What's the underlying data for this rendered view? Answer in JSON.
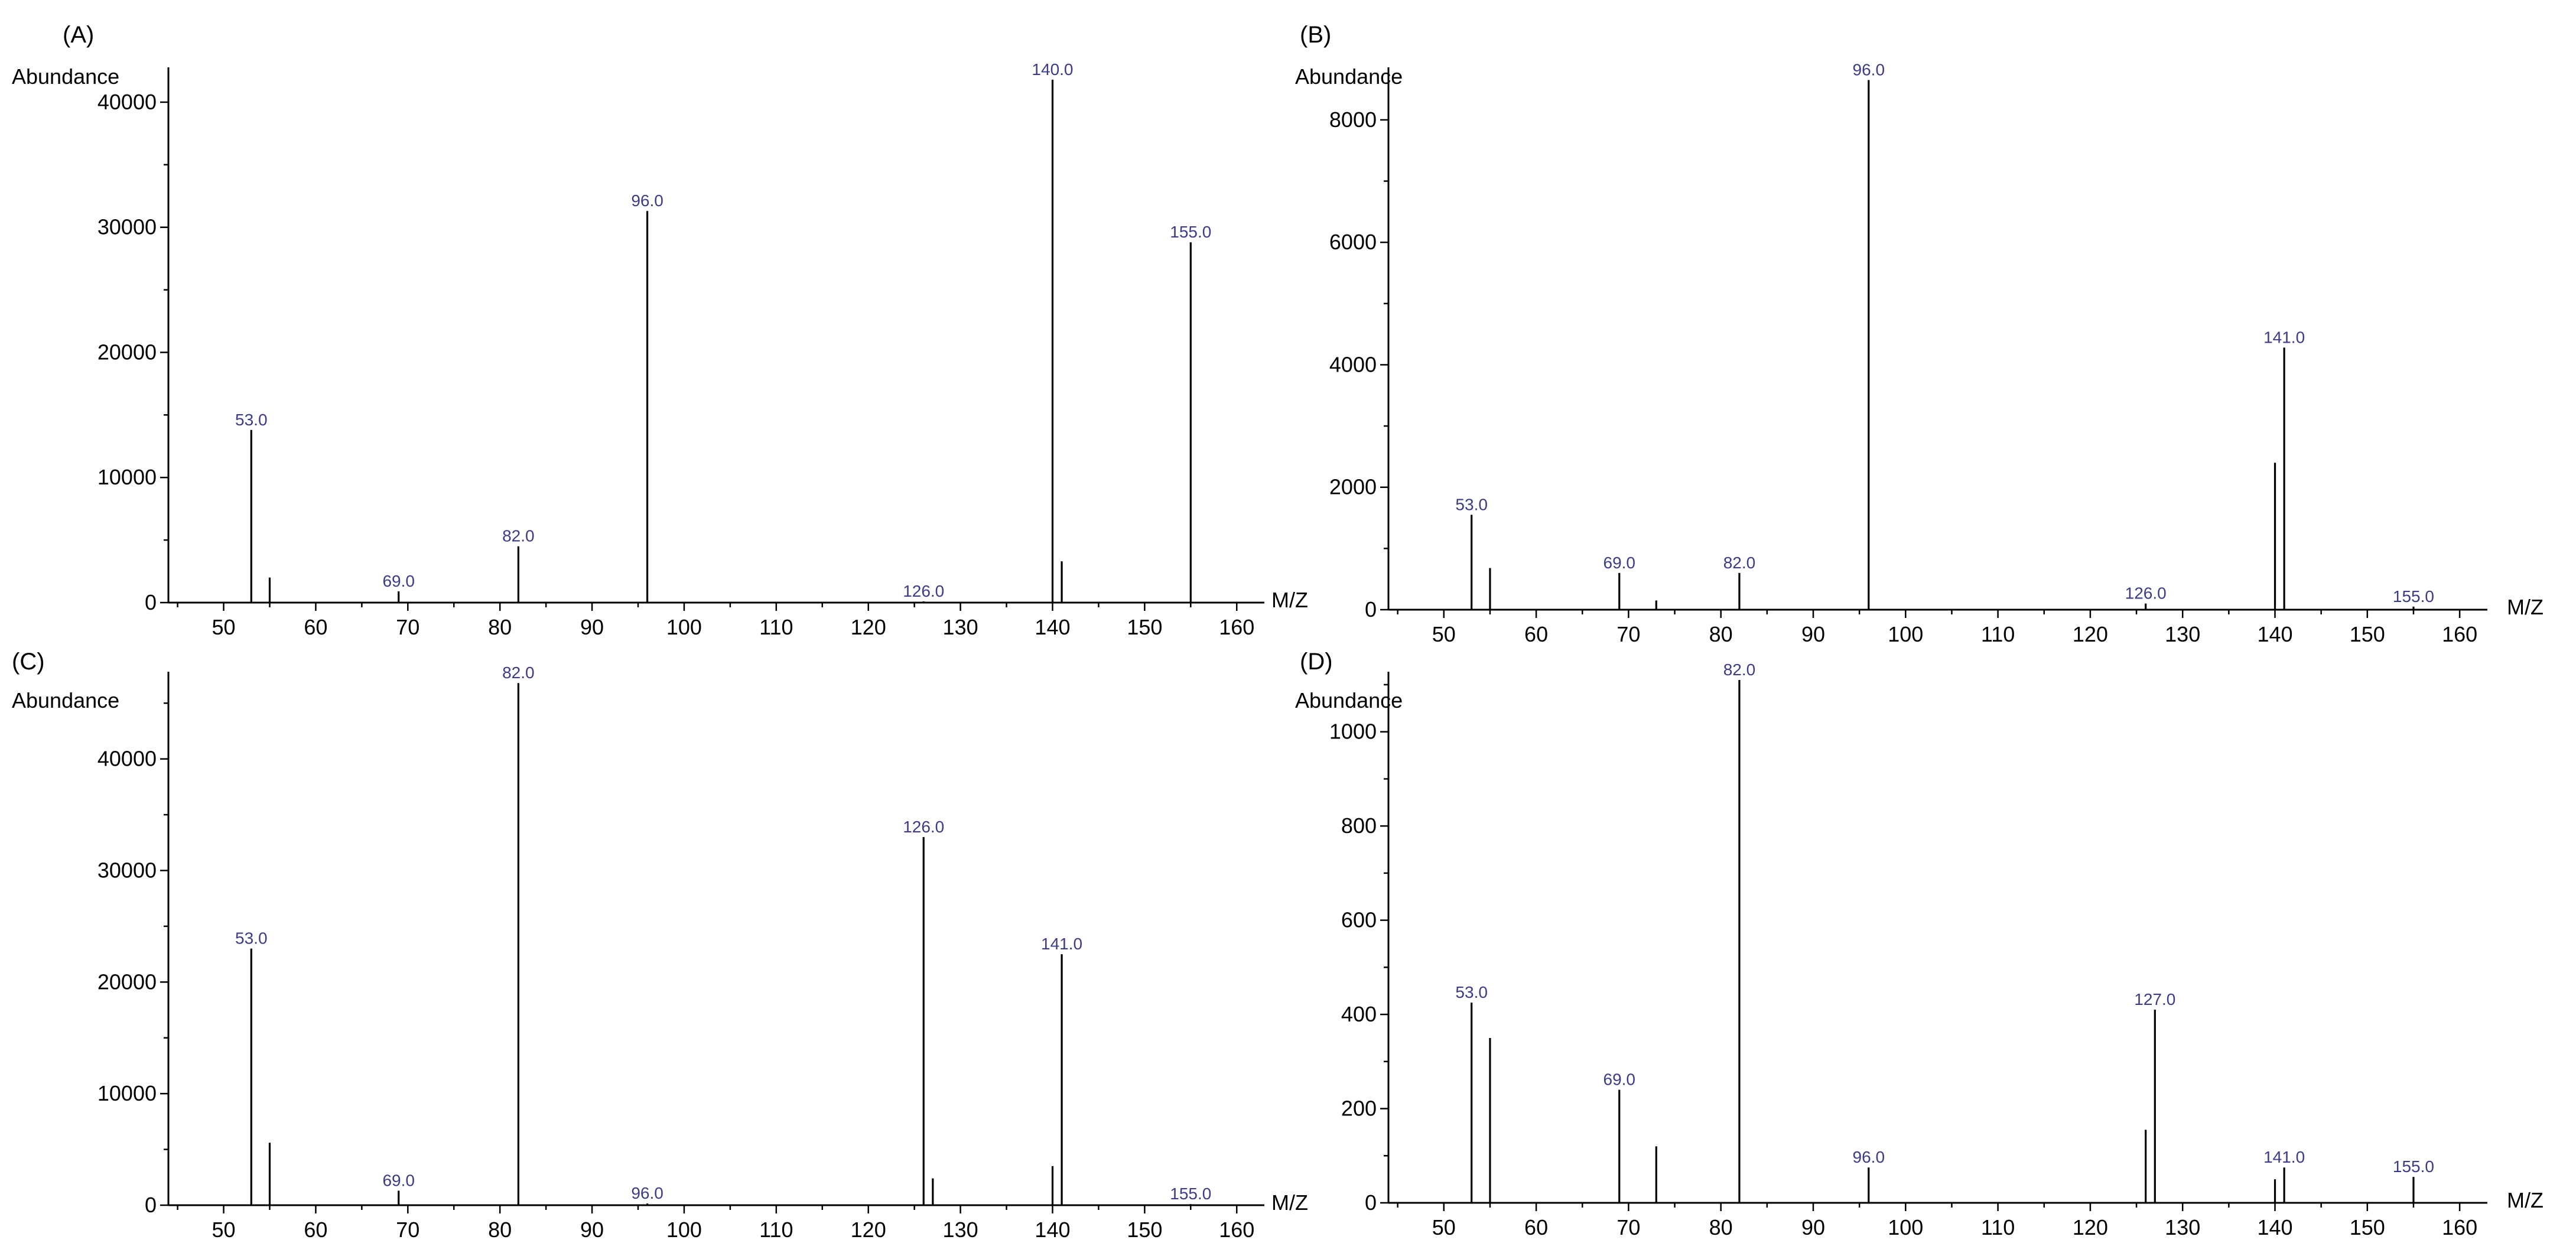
{
  "chart_data": [
    {
      "panel": "(A)",
      "type": "bar",
      "ylabel": "Abundance",
      "xlabel": "M/Z",
      "xlim": [
        44,
        163
      ],
      "ylim": [
        0,
        42500
      ],
      "xticks": [
        50,
        60,
        70,
        80,
        90,
        100,
        110,
        120,
        130,
        140,
        150,
        160
      ],
      "yticks": [
        0,
        10000,
        20000,
        30000,
        40000
      ],
      "peaks": [
        {
          "x": 53,
          "y": 13800,
          "label": "53.0"
        },
        {
          "x": 55,
          "y": 2000
        },
        {
          "x": 69,
          "y": 900,
          "label": "69.0"
        },
        {
          "x": 82,
          "y": 4500,
          "label": "82.0"
        },
        {
          "x": 96,
          "y": 31300,
          "label": "96.0"
        },
        {
          "x": 126,
          "y": 100,
          "label": "126.0"
        },
        {
          "x": 140,
          "y": 41800,
          "label": "140.0"
        },
        {
          "x": 141,
          "y": 3300
        },
        {
          "x": 155,
          "y": 28800,
          "label": "155.0"
        }
      ]
    },
    {
      "panel": "(B)",
      "type": "bar",
      "ylabel": "Abundance",
      "xlabel": "M/Z",
      "xlim": [
        44,
        163
      ],
      "ylim": [
        0,
        8800
      ],
      "xticks": [
        50,
        60,
        70,
        80,
        90,
        100,
        110,
        120,
        130,
        140,
        150,
        160
      ],
      "yticks": [
        0,
        2000,
        4000,
        6000,
        8000
      ],
      "peaks": [
        {
          "x": 53,
          "y": 1550,
          "label": "53.0"
        },
        {
          "x": 55,
          "y": 680
        },
        {
          "x": 69,
          "y": 600,
          "label": "69.0"
        },
        {
          "x": 73,
          "y": 150
        },
        {
          "x": 82,
          "y": 600,
          "label": "82.0"
        },
        {
          "x": 96,
          "y": 8650,
          "label": "96.0"
        },
        {
          "x": 126,
          "y": 100,
          "label": "126.0"
        },
        {
          "x": 140,
          "y": 2400
        },
        {
          "x": 141,
          "y": 4280,
          "label": "141.0"
        },
        {
          "x": 155,
          "y": 50,
          "label": "155.0"
        }
      ]
    },
    {
      "panel": "(C)",
      "type": "bar",
      "ylabel": "Abundance",
      "xlabel": "M/Z",
      "xlim": [
        44,
        163
      ],
      "ylim": [
        0,
        47500
      ],
      "xticks": [
        50,
        60,
        70,
        80,
        90,
        100,
        110,
        120,
        130,
        140,
        150,
        160
      ],
      "yticks": [
        0,
        10000,
        20000,
        30000,
        40000
      ],
      "peaks": [
        {
          "x": 53,
          "y": 23000,
          "label": "53.0"
        },
        {
          "x": 55,
          "y": 5600
        },
        {
          "x": 69,
          "y": 1300,
          "label": "69.0"
        },
        {
          "x": 82,
          "y": 46800,
          "label": "82.0"
        },
        {
          "x": 96,
          "y": 150,
          "label": "96.0"
        },
        {
          "x": 126,
          "y": 33000,
          "label": "126.0"
        },
        {
          "x": 127,
          "y": 2400
        },
        {
          "x": 140,
          "y": 3500
        },
        {
          "x": 141,
          "y": 22500,
          "label": "141.0"
        },
        {
          "x": 155,
          "y": 100,
          "label": "155.0"
        }
      ]
    },
    {
      "panel": "(D)",
      "type": "bar",
      "ylabel": "Abundance",
      "xlabel": "M/Z",
      "xlim": [
        44,
        163
      ],
      "ylim": [
        0,
        1120
      ],
      "xticks": [
        50,
        60,
        70,
        80,
        90,
        100,
        110,
        120,
        130,
        140,
        150,
        160
      ],
      "yticks": [
        0,
        200,
        400,
        600,
        800,
        1000
      ],
      "peaks": [
        {
          "x": 53,
          "y": 425,
          "label": "53.0"
        },
        {
          "x": 55,
          "y": 350
        },
        {
          "x": 69,
          "y": 240,
          "label": "69.0"
        },
        {
          "x": 73,
          "y": 120
        },
        {
          "x": 82,
          "y": 1110,
          "label": "82.0"
        },
        {
          "x": 96,
          "y": 75,
          "label": "96.0"
        },
        {
          "x": 126,
          "y": 155
        },
        {
          "x": 127,
          "y": 410,
          "label": "127.0"
        },
        {
          "x": 140,
          "y": 50
        },
        {
          "x": 141,
          "y": 75,
          "label": "141.0"
        },
        {
          "x": 155,
          "y": 55,
          "label": "155.0"
        }
      ]
    }
  ]
}
